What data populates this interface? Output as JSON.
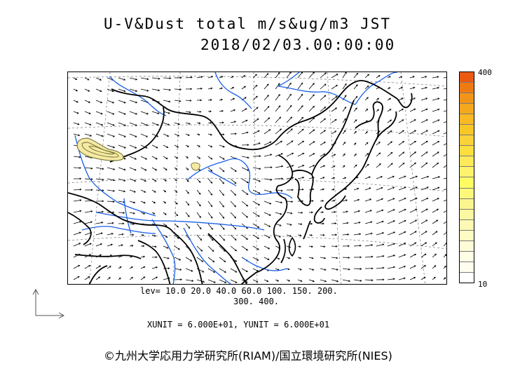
{
  "header": {
    "title": "U-V&Dust total m/s&ug/m3 JST",
    "timestamp": "2018/02/03.00:00:00"
  },
  "legend": {
    "max_label": "400",
    "min_label": "10",
    "colors": [
      "#ec5a12",
      "#f07a12",
      "#f3941a",
      "#f5a81e",
      "#f8b923",
      "#f9c628",
      "#fbd23a",
      "#fcde3f",
      "#fde95a",
      "#fef36c",
      "#fffc62",
      "#fdf87a",
      "#fbf58d",
      "#fcf8a1",
      "#fdf9b4",
      "#fefbc5",
      "#fefcd6",
      "#fffde4",
      "#fffeee",
      "#ffffff"
    ]
  },
  "levels": {
    "line1": "lev= 10.0 20.0 40.0 60.0 100. 150. 200.",
    "line2": "300. 400."
  },
  "units": "XUNIT = 6.000E+01, YUNIT = 6.000E+01",
  "credit": "©九州大学応用力学研究所(RIAM)/国立環境研究所(NIES)",
  "colors": {
    "coast": "#000000",
    "river": "#1a5fe6",
    "arrow": "#000000",
    "dust_fill": "#f5e9a4",
    "dust_outline": "#6b6b2a"
  }
}
